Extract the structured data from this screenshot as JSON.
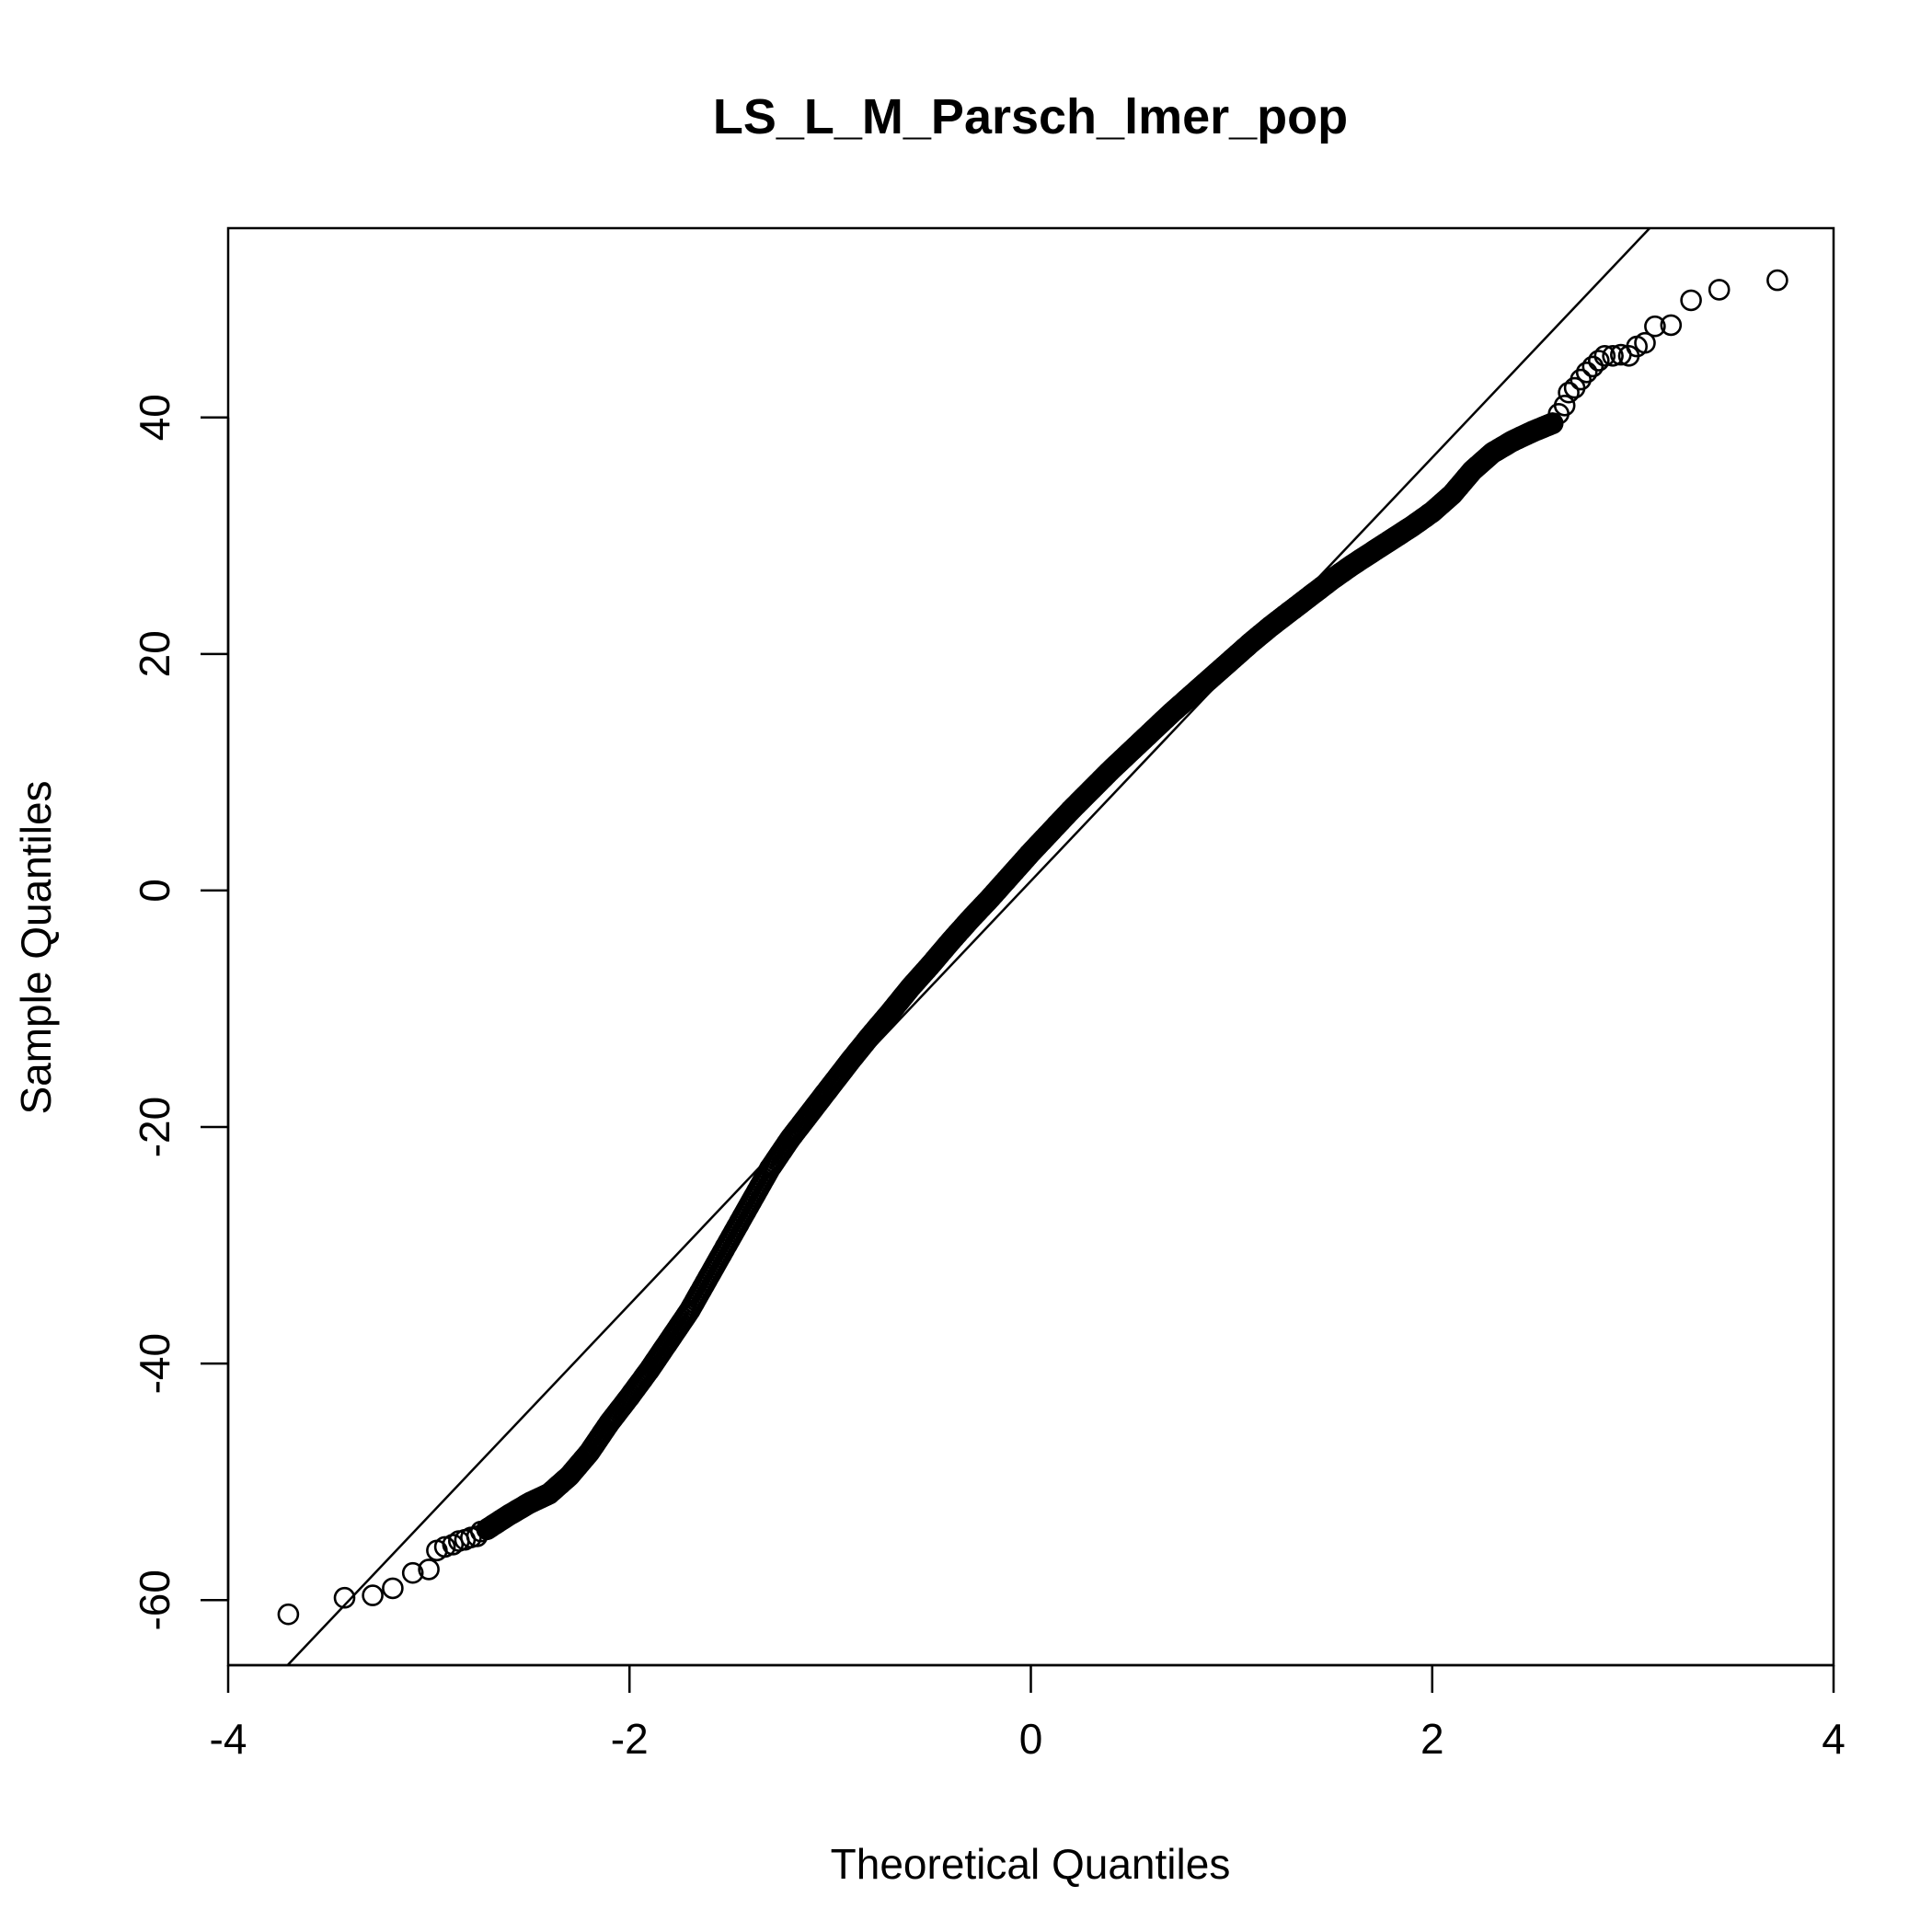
{
  "chart_data": {
    "type": "scatter",
    "title": "LS_L_M_Parsch_lmer_pop",
    "xlabel": "Theoretical Quantiles",
    "ylabel": "Sample Quantiles",
    "xlim": [
      -4,
      4
    ],
    "ylim": [
      -65.5,
      56
    ],
    "x_ticks": [
      -4,
      -2,
      0,
      2,
      4
    ],
    "x_tick_labels": [
      "-4",
      "-2",
      "0",
      "2",
      "4"
    ],
    "y_ticks": [
      -60,
      -40,
      -20,
      0,
      20,
      40
    ],
    "y_tick_labels": [
      "-60",
      "-40",
      "-20",
      "0",
      "20",
      "40"
    ],
    "grid": false,
    "legend": "none",
    "reference_line": {
      "slope": 17.9,
      "intercept": 0.8
    },
    "tail_points": [
      [
        -3.7,
        -61.2
      ],
      [
        -3.42,
        -59.8
      ],
      [
        -3.28,
        -59.6
      ],
      [
        -3.18,
        -59.0
      ],
      [
        -3.08,
        -57.7
      ],
      [
        -3.0,
        -57.4
      ],
      [
        -2.96,
        -55.8
      ],
      [
        -2.92,
        -55.5
      ],
      [
        -2.88,
        -55.3
      ],
      [
        -2.85,
        -55.0
      ],
      [
        -2.82,
        -54.9
      ],
      [
        -2.79,
        -54.7
      ],
      [
        -2.76,
        -54.6
      ],
      [
        -2.74,
        -54.2
      ],
      [
        -2.71,
        -54.0
      ],
      [
        2.6,
        39.5
      ],
      [
        2.63,
        40.3
      ],
      [
        2.66,
        41.0
      ],
      [
        2.68,
        42.1
      ],
      [
        2.71,
        42.5
      ],
      [
        2.74,
        43.2
      ],
      [
        2.77,
        43.8
      ],
      [
        2.8,
        44.3
      ],
      [
        2.83,
        44.8
      ],
      [
        2.86,
        45.2
      ],
      [
        2.9,
        45.2
      ],
      [
        2.94,
        45.3
      ],
      [
        2.98,
        45.2
      ],
      [
        3.02,
        46.0
      ],
      [
        3.06,
        46.3
      ],
      [
        3.11,
        47.7
      ],
      [
        3.19,
        47.8
      ],
      [
        3.29,
        49.9
      ],
      [
        3.43,
        50.8
      ],
      [
        3.72,
        51.6
      ]
    ],
    "body_curve": [
      [
        -2.71,
        -54.0
      ],
      [
        -2.6,
        -52.8
      ],
      [
        -2.5,
        -51.8
      ],
      [
        -2.4,
        -51.0
      ],
      [
        -2.3,
        -49.5
      ],
      [
        -2.2,
        -47.5
      ],
      [
        -2.1,
        -45.0
      ],
      [
        -2.0,
        -42.8
      ],
      [
        -1.9,
        -40.5
      ],
      [
        -1.8,
        -38.0
      ],
      [
        -1.7,
        -35.5
      ],
      [
        -1.6,
        -32.5
      ],
      [
        -1.5,
        -29.5
      ],
      [
        -1.4,
        -26.5
      ],
      [
        -1.3,
        -23.5
      ],
      [
        -1.2,
        -21.0
      ],
      [
        -1.1,
        -18.8
      ],
      [
        -1.0,
        -16.6
      ],
      [
        -0.9,
        -14.4
      ],
      [
        -0.8,
        -12.3
      ],
      [
        -0.7,
        -10.3
      ],
      [
        -0.6,
        -8.2
      ],
      [
        -0.5,
        -6.3
      ],
      [
        -0.4,
        -4.3
      ],
      [
        -0.3,
        -2.4
      ],
      [
        -0.2,
        -0.6
      ],
      [
        -0.1,
        1.3
      ],
      [
        0.0,
        3.2
      ],
      [
        0.1,
        5.0
      ],
      [
        0.2,
        6.8
      ],
      [
        0.3,
        8.5
      ],
      [
        0.4,
        10.2
      ],
      [
        0.5,
        11.8
      ],
      [
        0.6,
        13.4
      ],
      [
        0.7,
        15.0
      ],
      [
        0.8,
        16.5
      ],
      [
        0.9,
        18.0
      ],
      [
        1.0,
        19.5
      ],
      [
        1.1,
        21.0
      ],
      [
        1.2,
        22.4
      ],
      [
        1.3,
        23.7
      ],
      [
        1.4,
        25.0
      ],
      [
        1.5,
        26.3
      ],
      [
        1.6,
        27.5
      ],
      [
        1.7,
        28.6
      ],
      [
        1.8,
        29.7
      ],
      [
        1.9,
        30.8
      ],
      [
        2.0,
        32.0
      ],
      [
        2.1,
        33.5
      ],
      [
        2.2,
        35.5
      ],
      [
        2.3,
        37.0
      ],
      [
        2.4,
        38.0
      ],
      [
        2.5,
        38.8
      ],
      [
        2.6,
        39.5
      ]
    ]
  }
}
